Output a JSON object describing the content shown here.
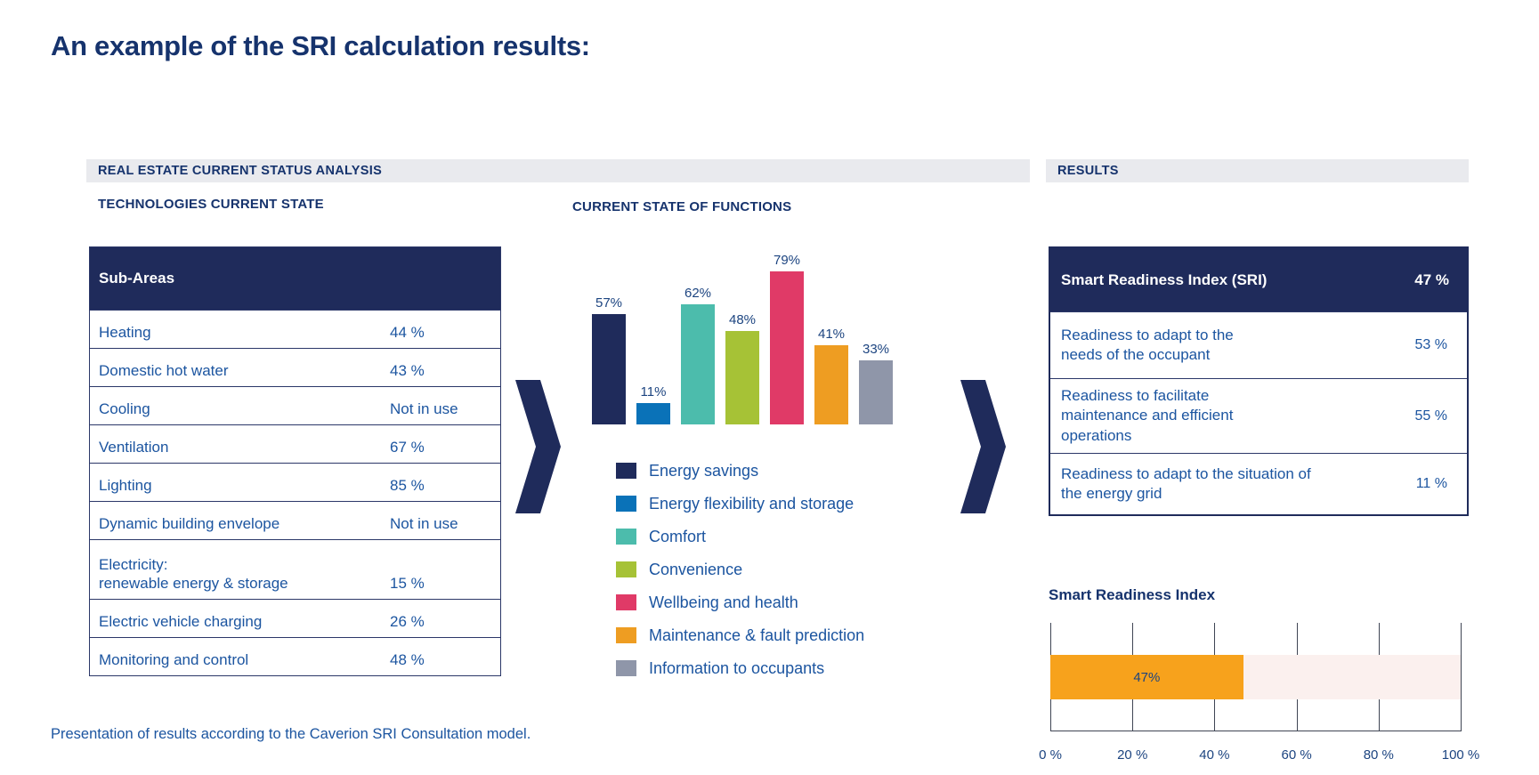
{
  "page": {
    "title": "An example of the SRI calculation results:",
    "footer": "Presentation of results according to the Caverion SRI Consultation model."
  },
  "palette": {
    "navy": "#1f2b5b",
    "heading_text": "#16336d",
    "body_text": "#1c55a0",
    "band_background": "#e9eaee",
    "value_label_text": "#1c4480"
  },
  "sections": {
    "analysis": {
      "band": "REAL ESTATE CURRENT STATUS ANALYSIS",
      "tech_header": "TECHNOLOGIES CURRENT STATE",
      "functions_header": "CURRENT STATE OF FUNCTIONS"
    },
    "results": {
      "band": "RESULTS"
    }
  },
  "tech_table": {
    "header": "Sub-Areas",
    "rows": [
      {
        "label": "Heating",
        "value": "44 %"
      },
      {
        "label": "Domestic hot water",
        "value": "43 %"
      },
      {
        "label": "Cooling",
        "value": "Not in use"
      },
      {
        "label": "Ventilation",
        "value": "67 %"
      },
      {
        "label": "Lighting",
        "value": "85 %"
      },
      {
        "label": "Dynamic building envelope",
        "value": "Not in use"
      },
      {
        "label": "Electricity:\nrenewable energy & storage",
        "value": "15 %"
      },
      {
        "label": "Electric vehicle charging",
        "value": "26 %"
      },
      {
        "label": "Monitoring and control",
        "value": "48 %"
      }
    ]
  },
  "results_table": {
    "header": {
      "label": "Smart Readiness Index (SRI)",
      "value": "47 %"
    },
    "rows": [
      {
        "label": "Readiness to adapt to the\nneeds of the occupant",
        "value": "53 %"
      },
      {
        "label": "Readiness to facilitate\nmaintenance and efficient\noperations",
        "value": "55 %"
      },
      {
        "label": "Readiness to adapt to the situation of\nthe energy grid",
        "value": "11 %"
      }
    ]
  },
  "chart_data": [
    {
      "type": "bar",
      "title": "CURRENT STATE OF FUNCTIONS",
      "categories": [
        "Energy savings",
        "Energy flexibility and storage",
        "Comfort",
        "Convenience",
        "Wellbeing and health",
        "Maintenance & fault prediction",
        "Information to occupants"
      ],
      "values": [
        57,
        11,
        62,
        48,
        79,
        41,
        33
      ],
      "data_labels": [
        "57%",
        "11%",
        "62%",
        "48%",
        "79%",
        "41%",
        "33%"
      ],
      "unit": "%",
      "colors": [
        "#1f2b5b",
        "#0a72b8",
        "#4cbcac",
        "#a6c236",
        "#e03a67",
        "#ee9d22",
        "#8f96a9"
      ],
      "ylim": [
        0,
        100
      ],
      "grid": false,
      "legend_position": "bottom"
    },
    {
      "type": "bar",
      "orientation": "horizontal",
      "title": "Smart Readiness Index",
      "categories": [
        "Smart Readiness Index"
      ],
      "values": [
        47
      ],
      "data_labels": [
        "47%"
      ],
      "unit": "%",
      "bar_color": "#f7a21c",
      "track_color": "#fbf0ee",
      "xlim": [
        0,
        100
      ],
      "x_ticks": [
        "0 %",
        "20 %",
        "40 %",
        "60 %",
        "80 %",
        "100 %"
      ],
      "grid": true
    }
  ]
}
